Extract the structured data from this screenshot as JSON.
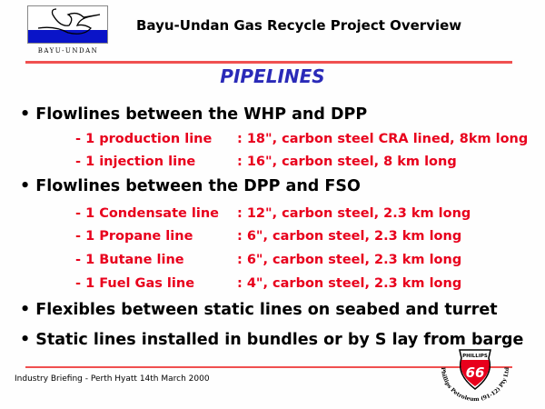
{
  "header": {
    "title": "Bayu-Undan Gas Recycle Project Overview",
    "logo_text": "BAYU-UNDAN"
  },
  "heading": "PIPELINES",
  "bullets": [
    {
      "text": "• Flowlines between the WHP and DPP",
      "items": [
        {
          "label": "- 1 production line",
          "value": ": 18\", carbon steel CRA lined, 8km long"
        },
        {
          "label": "- 1 injection line",
          "value": ": 16\", carbon steel, 8 km long"
        }
      ]
    },
    {
      "text": "• Flowlines between the DPP and FSO",
      "items": [
        {
          "label": "- 1 Condensate line",
          "value": ": 12\", carbon steel, 2.3 km long"
        },
        {
          "label": "- 1 Propane line",
          "value": ": 6\", carbon steel, 2.3 km long"
        },
        {
          "label": "- 1 Butane line",
          "value": ": 6\", carbon steel, 2.3 km long"
        },
        {
          "label": "- 1 Fuel Gas line",
          "value": ": 4\", carbon steel, 2.3 km long"
        }
      ]
    },
    {
      "text": "• Flexibles between static lines on seabed and turret"
    },
    {
      "text": "• Static lines installed in bundles or by S lay from barge"
    }
  ],
  "footer": "Industry Briefing - Perth Hyatt 14th March 2000",
  "phillips_logo": {
    "shield_top": "PHILLIPS",
    "shield_number": "66",
    "ring_text": "Phillips Petroleum (91-12) Pty Ltd"
  },
  "colors": {
    "rule": "#f05050",
    "heading": "#2a2ab8",
    "sub_text": "#e8001c"
  }
}
